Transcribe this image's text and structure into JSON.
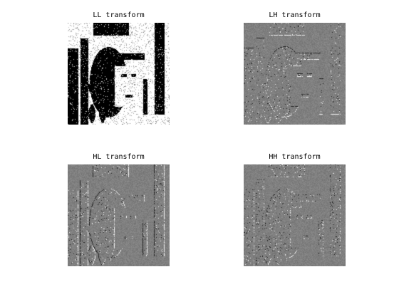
{
  "panels": [
    {
      "key": "ll",
      "title": "LL transform",
      "kind": "approximation"
    },
    {
      "key": "lh",
      "title": "LH transform",
      "kind": "detail"
    },
    {
      "key": "hl",
      "title": "HL transform",
      "kind": "detail"
    },
    {
      "key": "hh",
      "title": "HH transform",
      "kind": "detail"
    }
  ],
  "colors": {
    "background": "#ffffff",
    "detail_gray": "#808080",
    "text": "#000000"
  }
}
